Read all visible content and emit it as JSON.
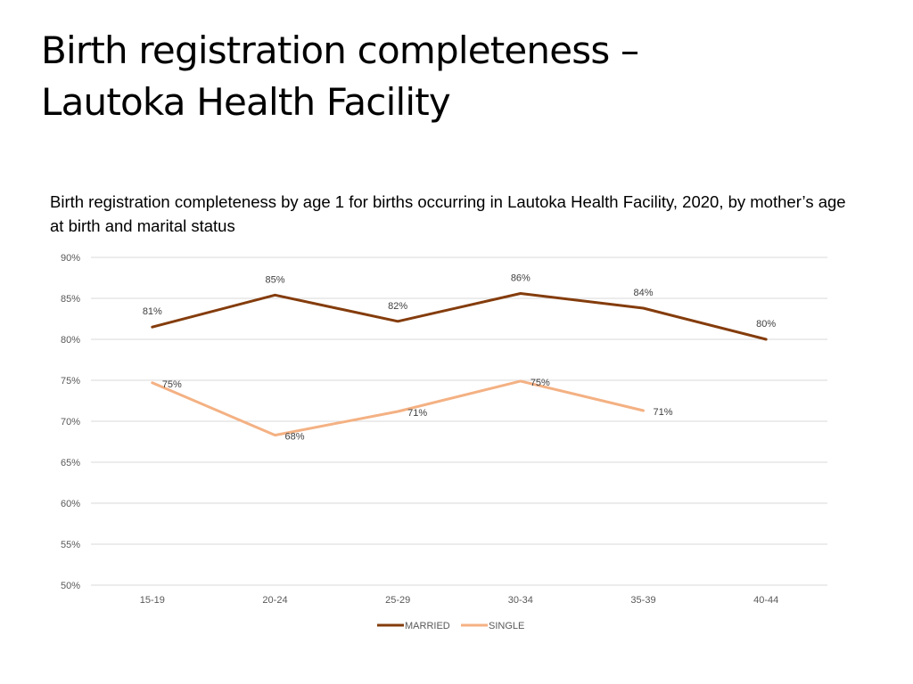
{
  "slide": {
    "title_line1": "Birth registration completeness –",
    "title_line2": "Lautoka Health Facility"
  },
  "chart_data": {
    "type": "line",
    "title": "Birth registration completeness by age 1 for births occurring in Lautoka Health Facility, 2020, by mother’s age at birth and marital status",
    "categories": [
      "15-19",
      "20-24",
      "25-29",
      "30-34",
      "35-39",
      "40-44"
    ],
    "ylim": [
      50,
      90
    ],
    "ytick_step": 5,
    "ytick_suffix": "%",
    "grid": true,
    "legend_position": "bottom",
    "series": [
      {
        "name": "MARRIED",
        "color": "#843C0C",
        "values": [
          81.5,
          85.4,
          82.2,
          85.6,
          83.8,
          80.0
        ],
        "labels": [
          "81%",
          "85%",
          "82%",
          "86%",
          "84%",
          "80%"
        ]
      },
      {
        "name": "SINGLE",
        "color": "#F4B183",
        "values": [
          74.7,
          68.3,
          71.2,
          74.9,
          71.3,
          null
        ],
        "labels": [
          "75%",
          "68%",
          "71%",
          "75%",
          "71%",
          null
        ]
      }
    ]
  }
}
